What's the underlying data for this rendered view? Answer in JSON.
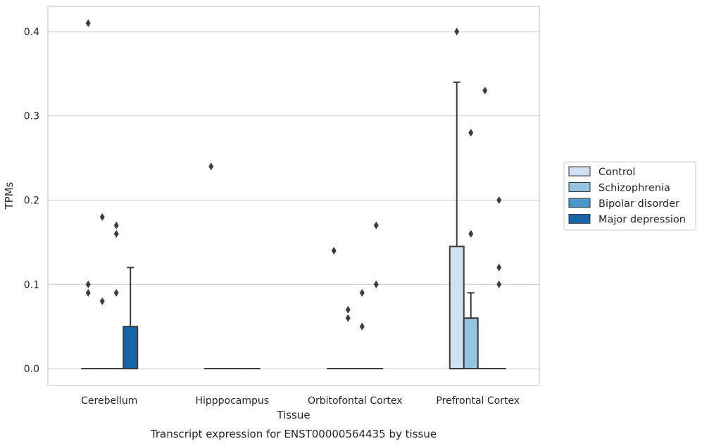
{
  "chart_data": {
    "type": "box",
    "title": "Transcript expression for ENST00000564435 by tissue",
    "xlabel": "Tissue",
    "ylabel": "TPMs",
    "ylim": [
      -0.02,
      0.43
    ],
    "yticks": [
      0.0,
      0.1,
      0.2,
      0.3,
      0.4
    ],
    "ytick_labels": [
      "0.0",
      "0.1",
      "0.2",
      "0.3",
      "0.4"
    ],
    "grid": true,
    "legend_position": "right",
    "categories": [
      "Cerebellum",
      "Hipppocampus",
      "Orbitofontal Cortex",
      "Prefrontal Cortex"
    ],
    "series": [
      {
        "name": "Control",
        "color": "#d0e1f2",
        "boxes": [
          {
            "q1": 0,
            "median": 0,
            "q3": 0,
            "whisker_low": 0,
            "whisker_high": 0,
            "outliers": [
              0.1,
              0.09,
              0.41
            ]
          },
          {
            "q1": 0,
            "median": 0,
            "q3": 0,
            "whisker_low": 0,
            "whisker_high": 0,
            "outliers": [
              0.24
            ]
          },
          {
            "q1": 0,
            "median": 0,
            "q3": 0,
            "whisker_low": 0,
            "whisker_high": 0,
            "outliers": [
              0.14
            ]
          },
          {
            "q1": 0,
            "median": 0,
            "q3": 0.145,
            "whisker_low": 0,
            "whisker_high": 0.34,
            "outliers": [
              0.4
            ]
          }
        ]
      },
      {
        "name": "Schizophrenia",
        "color": "#94c4df",
        "boxes": [
          {
            "q1": 0,
            "median": 0,
            "q3": 0,
            "whisker_low": 0,
            "whisker_high": 0,
            "outliers": [
              0.08,
              0.18
            ]
          },
          {
            "q1": 0,
            "median": 0,
            "q3": 0,
            "whisker_low": 0,
            "whisker_high": 0,
            "outliers": []
          },
          {
            "q1": 0,
            "median": 0,
            "q3": 0,
            "whisker_low": 0,
            "whisker_high": 0,
            "outliers": [
              0.07,
              0.06
            ]
          },
          {
            "q1": 0,
            "median": 0,
            "q3": 0.06,
            "whisker_low": 0,
            "whisker_high": 0.09,
            "outliers": [
              0.28,
              0.16
            ]
          }
        ]
      },
      {
        "name": "Bipolar disorder",
        "color": "#4a98c9",
        "boxes": [
          {
            "q1": 0,
            "median": 0,
            "q3": 0,
            "whisker_low": 0,
            "whisker_high": 0,
            "outliers": [
              0.17,
              0.16,
              0.09
            ]
          },
          {
            "q1": 0,
            "median": 0,
            "q3": 0,
            "whisker_low": 0,
            "whisker_high": 0,
            "outliers": []
          },
          {
            "q1": 0,
            "median": 0,
            "q3": 0,
            "whisker_low": 0,
            "whisker_high": 0,
            "outliers": [
              0.09,
              0.05
            ]
          },
          {
            "q1": 0,
            "median": 0,
            "q3": 0,
            "whisker_low": 0,
            "whisker_high": 0,
            "outliers": [
              0.33
            ]
          }
        ]
      },
      {
        "name": "Major depression",
        "color": "#1764ab",
        "boxes": [
          {
            "q1": 0,
            "median": 0,
            "q3": 0.05,
            "whisker_low": 0,
            "whisker_high": 0.12,
            "outliers": []
          },
          {
            "q1": 0,
            "median": 0,
            "q3": 0,
            "whisker_low": 0,
            "whisker_high": 0,
            "outliers": []
          },
          {
            "q1": 0,
            "median": 0,
            "q3": 0,
            "whisker_low": 0,
            "whisker_high": 0,
            "outliers": [
              0.17,
              0.1
            ]
          },
          {
            "q1": 0,
            "median": 0,
            "q3": 0,
            "whisker_low": 0,
            "whisker_high": 0,
            "outliers": [
              0.2,
              0.12,
              0.1
            ]
          }
        ]
      }
    ]
  }
}
